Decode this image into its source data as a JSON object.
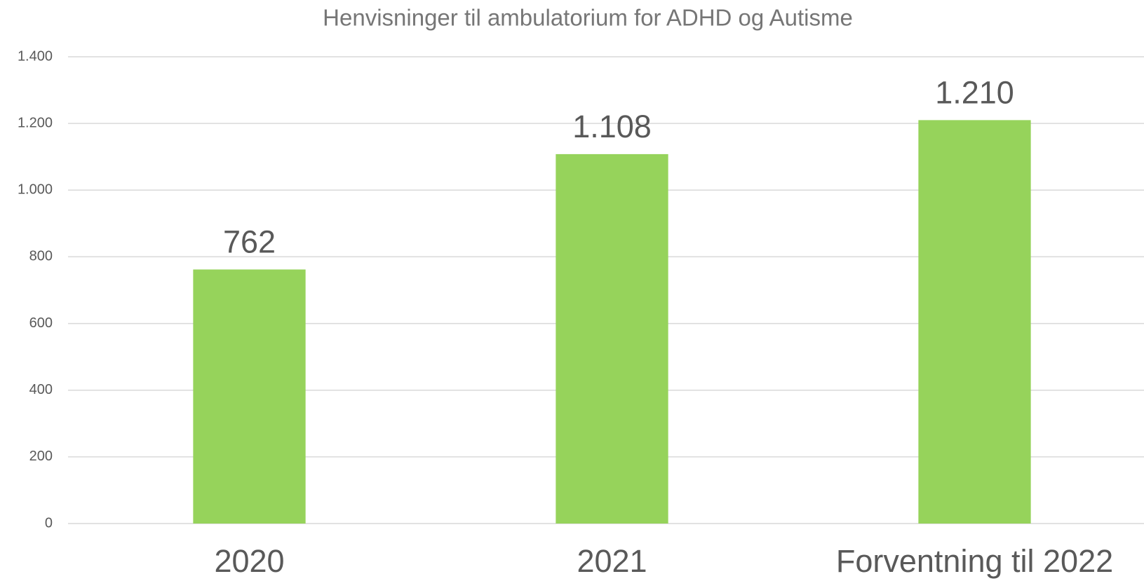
{
  "chart_data": {
    "type": "bar",
    "title": "Henvisninger til ambulatorium for ADHD og Autisme",
    "categories": [
      "2020",
      "2021",
      "Forventning til 2022"
    ],
    "values": [
      762,
      1108,
      1210
    ],
    "value_labels": [
      "762",
      "1.108",
      "1.210"
    ],
    "color": "#96d35b",
    "ylim": [
      0,
      1400
    ],
    "yticks": [
      0,
      200,
      400,
      600,
      800,
      {
        "value": 1000,
        "label": "1.000"
      },
      {
        "value": 1200,
        "label": "1.200"
      },
      {
        "value": 1400,
        "label": "1.400"
      }
    ],
    "grid": true
  }
}
